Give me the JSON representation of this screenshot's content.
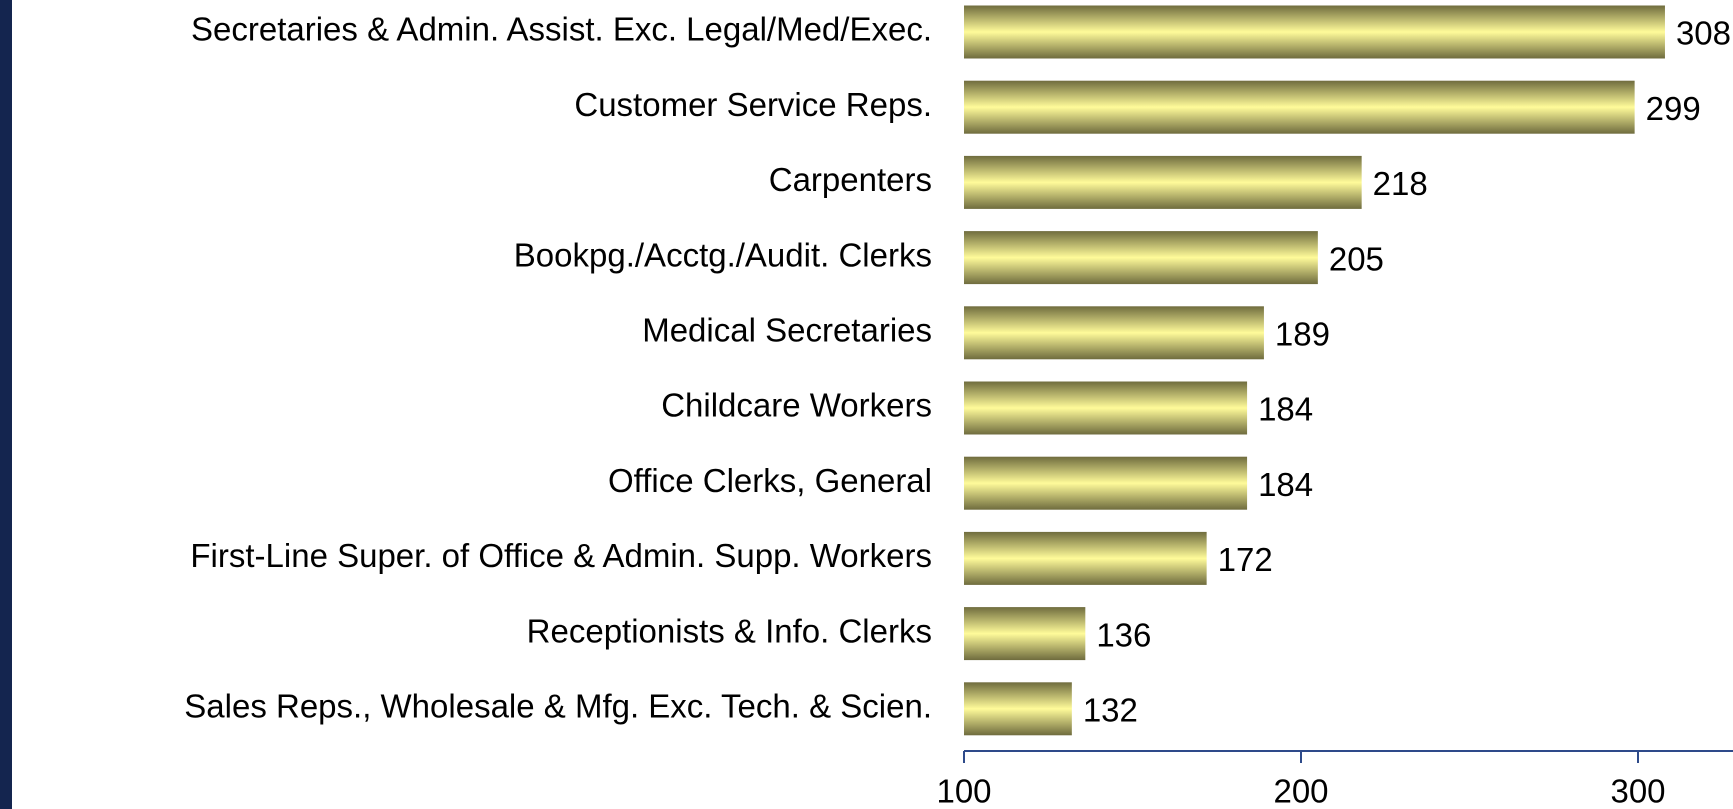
{
  "chart_data": {
    "type": "barh",
    "categories": [
      "Secretaries & Admin. Assist. Exc. Legal/Med/Exec.",
      "Customer Service Reps.",
      "Carpenters",
      "Bookpg./Acctg./Audit. Clerks",
      "Medical Secretaries",
      "Childcare Workers",
      "Office Clerks, General",
      "First-Line Super. of Office & Admin. Supp. Workers",
      "Receptionists & Info. Clerks",
      "Sales Reps., Wholesale & Mfg. Exc. Tech. & Scien."
    ],
    "values": [
      308,
      299,
      218,
      205,
      189,
      184,
      184,
      172,
      136,
      132
    ],
    "color": "#fffb9a",
    "xlim": [
      100,
      330
    ],
    "xticks": [
      100,
      200,
      300
    ]
  }
}
